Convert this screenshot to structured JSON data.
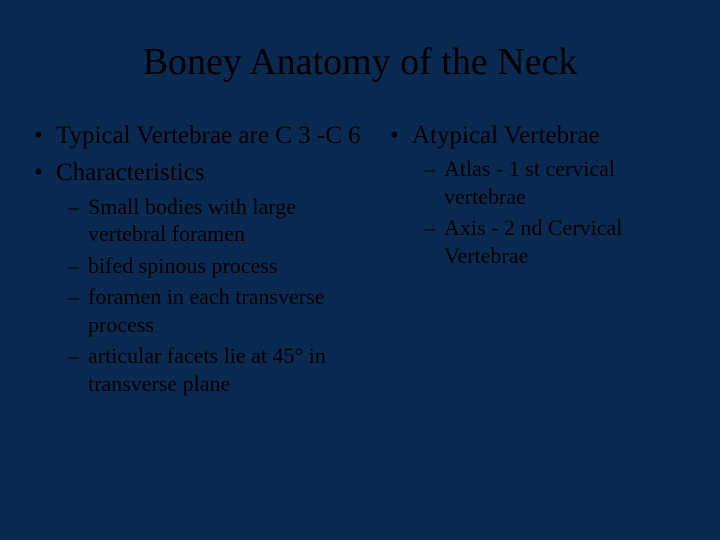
{
  "title": "Boney Anatomy of the Neck",
  "left": {
    "bullets": [
      {
        "text": "Typical Vertebrae are C 3 -C 6"
      },
      {
        "text": "Characteristics",
        "sub": [
          "Small bodies with large vertebral foramen",
          "bifed spinous process",
          "foramen in each transverse process",
          "articular facets lie at 45° in transverse plane"
        ]
      }
    ]
  },
  "right": {
    "bullets": [
      {
        "text": "Atypical Vertebrae",
        "sub": [
          "Atlas - 1 st cervical vertebrae",
          "Axis - 2 nd Cervical Vertebrae"
        ]
      }
    ]
  },
  "style": {
    "background_color": "#0b2a52",
    "title_font_size": 38,
    "bullet_font_size": 25,
    "sub_bullet_font_size": 22,
    "text_color": "#000000",
    "font_family": "Times New Roman"
  }
}
